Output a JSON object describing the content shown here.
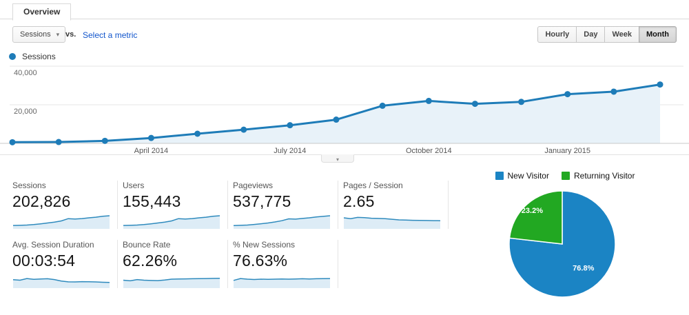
{
  "tab": {
    "label": "Overview"
  },
  "toolbar": {
    "metric_selector": "Sessions",
    "vs_label": "vs.",
    "select_metric_label": "Select a metric",
    "granularity": [
      "Hourly",
      "Day",
      "Week",
      "Month"
    ],
    "active_granularity": "Month"
  },
  "series_legend": {
    "label": "Sessions"
  },
  "colors": {
    "line_blue": "#1e7cb8",
    "area_blue": "#e8f2f9",
    "spark_line": "#2e8abd",
    "spark_fill": "#ddecf6",
    "pie_blue": "#1b84c4",
    "pie_green": "#22a822",
    "grid": "#e6e6e6",
    "axis": "#c9c9c9",
    "link": "#1155cc"
  },
  "chart_data": [
    {
      "type": "line",
      "name": "sessions-over-time",
      "title": "Sessions",
      "x": [
        "Jan 2014",
        "Feb 2014",
        "Mar 2014",
        "Apr 2014",
        "May 2014",
        "Jun 2014",
        "Jul 2014",
        "Aug 2014",
        "Sep 2014",
        "Oct 2014",
        "Nov 2014",
        "Dec 2014",
        "Jan 2015",
        "Feb 2015",
        "Mar 2015"
      ],
      "values": [
        600,
        700,
        1300,
        2800,
        5000,
        7100,
        9400,
        12300,
        19500,
        22000,
        20500,
        21500,
        25500,
        26800,
        30500
      ],
      "ylim": [
        0,
        40000
      ],
      "yticks": [
        20000,
        40000
      ],
      "ytick_labels": [
        "20,000",
        "40,000"
      ],
      "xticks": [
        {
          "label": "April 2014",
          "index": 3
        },
        {
          "label": "July 2014",
          "index": 6
        },
        {
          "label": "October 2014",
          "index": 9
        },
        {
          "label": "January 2015",
          "index": 12
        }
      ],
      "grid": true,
      "legend_position": "top-left"
    },
    {
      "type": "pie",
      "name": "visitor-type-split",
      "slices": [
        {
          "label": "New Visitor",
          "value": 76.8,
          "display": "76.8%",
          "color_key": "pie_blue"
        },
        {
          "label": "Returning Visitor",
          "value": 23.2,
          "display": "23.2%",
          "color_key": "pie_green"
        }
      ],
      "legend_position": "top-center"
    }
  ],
  "cards": [
    {
      "label": "Sessions",
      "value": "202,826",
      "spark": [
        0.06,
        0.07,
        0.1,
        0.15,
        0.22,
        0.3,
        0.38,
        0.5,
        0.72,
        0.68,
        0.73,
        0.8,
        0.86,
        0.95,
        1.0
      ]
    },
    {
      "label": "Users",
      "value": "155,443",
      "spark": [
        0.06,
        0.07,
        0.1,
        0.15,
        0.22,
        0.3,
        0.38,
        0.5,
        0.72,
        0.68,
        0.73,
        0.8,
        0.86,
        0.95,
        1.0
      ]
    },
    {
      "label": "Pageviews",
      "value": "537,775",
      "spark": [
        0.05,
        0.07,
        0.1,
        0.16,
        0.23,
        0.3,
        0.4,
        0.52,
        0.7,
        0.67,
        0.74,
        0.8,
        0.88,
        0.94,
        1.0
      ]
    },
    {
      "label": "Pages / Session",
      "value": "2.65",
      "spark": [
        0.8,
        0.72,
        0.84,
        0.82,
        0.76,
        0.74,
        0.72,
        0.66,
        0.6,
        0.58,
        0.56,
        0.55,
        0.54,
        0.53,
        0.52
      ]
    },
    {
      "label": "Avg. Session Duration",
      "value": "00:03:54",
      "spark": [
        0.55,
        0.5,
        0.66,
        0.58,
        0.62,
        0.64,
        0.56,
        0.42,
        0.34,
        0.33,
        0.36,
        0.35,
        0.33,
        0.3,
        0.28
      ]
    },
    {
      "label": "Bounce Rate",
      "value": "62.26%",
      "spark": [
        0.5,
        0.44,
        0.56,
        0.5,
        0.47,
        0.46,
        0.52,
        0.6,
        0.62,
        0.63,
        0.64,
        0.65,
        0.66,
        0.67,
        0.68
      ]
    },
    {
      "label": "% New Sessions",
      "value": "76.63%",
      "spark": [
        0.48,
        0.66,
        0.6,
        0.57,
        0.6,
        0.58,
        0.6,
        0.62,
        0.6,
        0.62,
        0.64,
        0.62,
        0.64,
        0.65,
        0.66
      ]
    }
  ],
  "collapse_handle": {
    "icon": "chevron-down",
    "glyph": "▾"
  },
  "dropdown_caret_glyph": "▾"
}
